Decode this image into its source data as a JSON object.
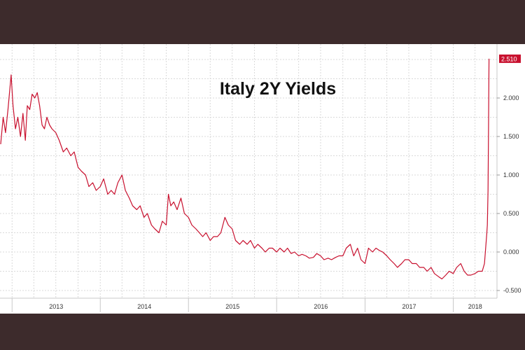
{
  "chart_data": {
    "type": "line",
    "title": "Italy 2Y Yields",
    "xlabel": "",
    "ylabel": "",
    "x_tick_labels": [
      "2013",
      "2014",
      "2015",
      "2016",
      "2017",
      "2018"
    ],
    "y_tick_labels": [
      "2.000",
      "1.500",
      "1.000",
      "0.500",
      "0.000",
      "-0.500"
    ],
    "ylim": [
      -0.6,
      2.7
    ],
    "grid": true,
    "last_value_label": "2.510",
    "series": [
      {
        "color": "#c8102e",
        "points": [
          [
            "2012-11-15",
            1.4
          ],
          [
            "2012-11-25",
            1.75
          ],
          [
            "2012-12-05",
            1.55
          ],
          [
            "2012-12-15",
            1.85
          ],
          [
            "2012-12-28",
            2.3
          ],
          [
            "2013-01-05",
            1.9
          ],
          [
            "2013-01-15",
            1.6
          ],
          [
            "2013-01-25",
            1.75
          ],
          [
            "2013-02-05",
            1.5
          ],
          [
            "2013-02-15",
            1.8
          ],
          [
            "2013-02-25",
            1.45
          ],
          [
            "2013-03-05",
            1.9
          ],
          [
            "2013-03-15",
            1.85
          ],
          [
            "2013-03-25",
            2.05
          ],
          [
            "2013-04-05",
            2.0
          ],
          [
            "2013-04-15",
            2.07
          ],
          [
            "2013-04-25",
            1.9
          ],
          [
            "2013-05-05",
            1.65
          ],
          [
            "2013-05-15",
            1.6
          ],
          [
            "2013-05-25",
            1.75
          ],
          [
            "2013-06-05",
            1.65
          ],
          [
            "2013-06-15",
            1.6
          ],
          [
            "2013-07-01",
            1.55
          ],
          [
            "2013-07-15",
            1.45
          ],
          [
            "2013-08-01",
            1.3
          ],
          [
            "2013-08-15",
            1.35
          ],
          [
            "2013-09-01",
            1.25
          ],
          [
            "2013-09-15",
            1.3
          ],
          [
            "2013-10-01",
            1.1
          ],
          [
            "2013-10-15",
            1.05
          ],
          [
            "2013-11-01",
            1.0
          ],
          [
            "2013-11-15",
            0.85
          ],
          [
            "2013-12-01",
            0.9
          ],
          [
            "2013-12-15",
            0.8
          ],
          [
            "2014-01-01",
            0.85
          ],
          [
            "2014-01-15",
            0.95
          ],
          [
            "2014-02-01",
            0.75
          ],
          [
            "2014-02-15",
            0.8
          ],
          [
            "2014-03-01",
            0.75
          ],
          [
            "2014-03-15",
            0.9
          ],
          [
            "2014-04-01",
            1.0
          ],
          [
            "2014-04-15",
            0.8
          ],
          [
            "2014-05-01",
            0.7
          ],
          [
            "2014-05-15",
            0.6
          ],
          [
            "2014-06-01",
            0.55
          ],
          [
            "2014-06-15",
            0.6
          ],
          [
            "2014-07-01",
            0.45
          ],
          [
            "2014-07-15",
            0.5
          ],
          [
            "2014-08-01",
            0.35
          ],
          [
            "2014-08-15",
            0.3
          ],
          [
            "2014-09-01",
            0.25
          ],
          [
            "2014-09-15",
            0.4
          ],
          [
            "2014-10-01",
            0.35
          ],
          [
            "2014-10-10",
            0.75
          ],
          [
            "2014-10-20",
            0.6
          ],
          [
            "2014-11-01",
            0.65
          ],
          [
            "2014-11-15",
            0.55
          ],
          [
            "2014-12-01",
            0.7
          ],
          [
            "2014-12-15",
            0.5
          ],
          [
            "2015-01-01",
            0.45
          ],
          [
            "2015-01-15",
            0.35
          ],
          [
            "2015-02-01",
            0.3
          ],
          [
            "2015-02-15",
            0.25
          ],
          [
            "2015-03-01",
            0.2
          ],
          [
            "2015-03-15",
            0.25
          ],
          [
            "2015-04-01",
            0.15
          ],
          [
            "2015-04-15",
            0.2
          ],
          [
            "2015-05-01",
            0.2
          ],
          [
            "2015-05-15",
            0.25
          ],
          [
            "2015-06-01",
            0.45
          ],
          [
            "2015-06-15",
            0.35
          ],
          [
            "2015-07-01",
            0.3
          ],
          [
            "2015-07-15",
            0.15
          ],
          [
            "2015-08-01",
            0.1
          ],
          [
            "2015-08-15",
            0.15
          ],
          [
            "2015-09-01",
            0.1
          ],
          [
            "2015-09-15",
            0.15
          ],
          [
            "2015-10-01",
            0.05
          ],
          [
            "2015-10-15",
            0.1
          ],
          [
            "2015-11-01",
            0.05
          ],
          [
            "2015-11-15",
            0.0
          ],
          [
            "2015-12-01",
            0.05
          ],
          [
            "2015-12-15",
            0.05
          ],
          [
            "2016-01-01",
            0.0
          ],
          [
            "2016-01-15",
            0.05
          ],
          [
            "2016-02-01",
            0.0
          ],
          [
            "2016-02-15",
            0.05
          ],
          [
            "2016-03-01",
            -0.02
          ],
          [
            "2016-03-15",
            0.0
          ],
          [
            "2016-04-01",
            -0.05
          ],
          [
            "2016-04-15",
            -0.03
          ],
          [
            "2016-05-01",
            -0.05
          ],
          [
            "2016-05-15",
            -0.08
          ],
          [
            "2016-06-01",
            -0.07
          ],
          [
            "2016-06-15",
            -0.02
          ],
          [
            "2016-07-01",
            -0.05
          ],
          [
            "2016-07-15",
            -0.1
          ],
          [
            "2016-08-01",
            -0.08
          ],
          [
            "2016-08-15",
            -0.1
          ],
          [
            "2016-09-01",
            -0.07
          ],
          [
            "2016-09-15",
            -0.05
          ],
          [
            "2016-10-01",
            -0.05
          ],
          [
            "2016-10-15",
            0.05
          ],
          [
            "2016-11-01",
            0.1
          ],
          [
            "2016-11-15",
            -0.05
          ],
          [
            "2016-12-01",
            0.05
          ],
          [
            "2016-12-15",
            -0.1
          ],
          [
            "2017-01-01",
            -0.15
          ],
          [
            "2017-01-15",
            0.05
          ],
          [
            "2017-02-01",
            0.0
          ],
          [
            "2017-02-15",
            0.05
          ],
          [
            "2017-03-01",
            0.02
          ],
          [
            "2017-03-15",
            0.0
          ],
          [
            "2017-04-01",
            -0.05
          ],
          [
            "2017-04-15",
            -0.1
          ],
          [
            "2017-05-01",
            -0.15
          ],
          [
            "2017-05-15",
            -0.2
          ],
          [
            "2017-06-01",
            -0.15
          ],
          [
            "2017-06-15",
            -0.1
          ],
          [
            "2017-07-01",
            -0.1
          ],
          [
            "2017-07-15",
            -0.15
          ],
          [
            "2017-08-01",
            -0.15
          ],
          [
            "2017-08-15",
            -0.2
          ],
          [
            "2017-09-01",
            -0.2
          ],
          [
            "2017-09-15",
            -0.25
          ],
          [
            "2017-10-01",
            -0.2
          ],
          [
            "2017-10-15",
            -0.28
          ],
          [
            "2017-11-01",
            -0.32
          ],
          [
            "2017-11-15",
            -0.35
          ],
          [
            "2017-12-01",
            -0.3
          ],
          [
            "2017-12-15",
            -0.25
          ],
          [
            "2018-01-01",
            -0.28
          ],
          [
            "2018-01-15",
            -0.2
          ],
          [
            "2018-02-01",
            -0.15
          ],
          [
            "2018-02-15",
            -0.25
          ],
          [
            "2018-03-01",
            -0.3
          ],
          [
            "2018-03-15",
            -0.3
          ],
          [
            "2018-04-01",
            -0.28
          ],
          [
            "2018-04-15",
            -0.25
          ],
          [
            "2018-05-01",
            -0.25
          ],
          [
            "2018-05-10",
            -0.15
          ],
          [
            "2018-05-15",
            0.05
          ],
          [
            "2018-05-20",
            0.25
          ],
          [
            "2018-05-22",
            0.35
          ],
          [
            "2018-05-25",
            0.8
          ],
          [
            "2018-05-27",
            1.6
          ],
          [
            "2018-05-29",
            2.51
          ]
        ]
      }
    ]
  }
}
